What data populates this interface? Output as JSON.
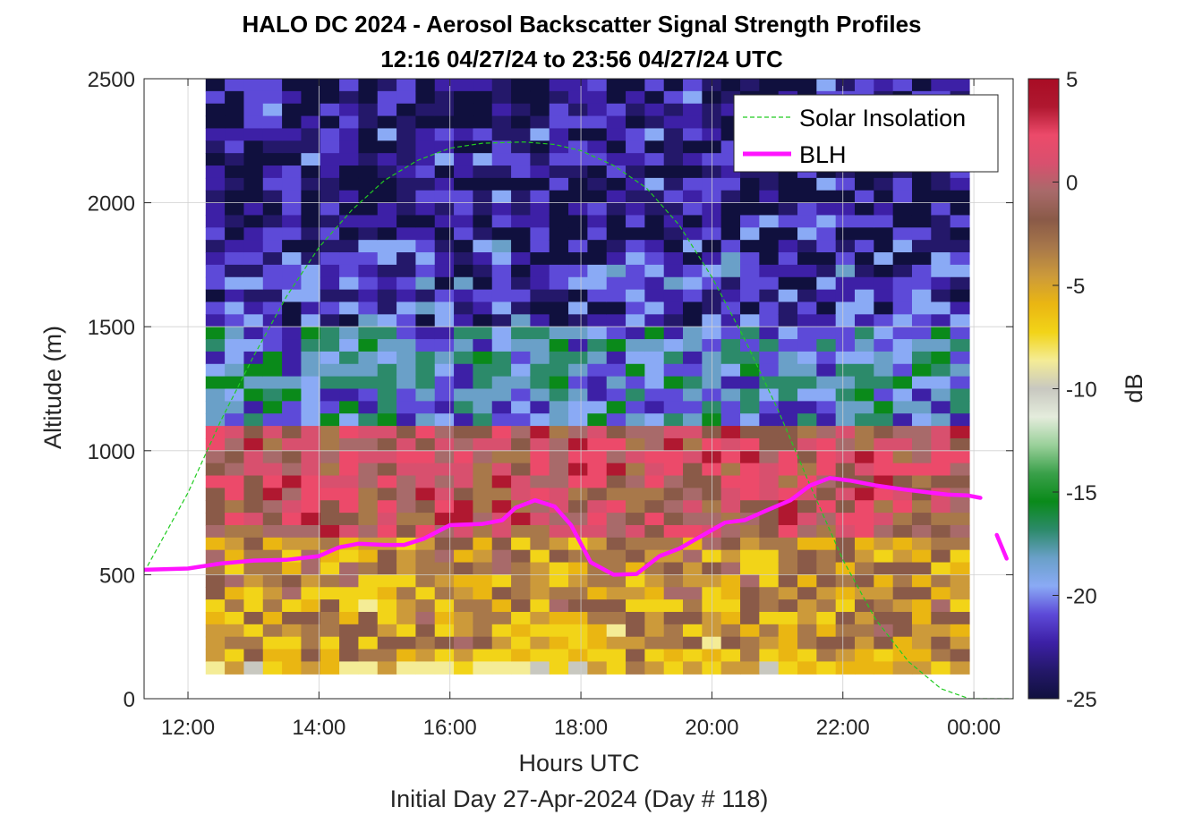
{
  "figure": {
    "title_line1": "HALO DC 2024 - Aerosol Backscatter Signal Strength Profiles",
    "title_line2": "12:16 04/27/24 to 23:56 04/27/24  UTC",
    "xlabel": "Hours UTC",
    "ylabel": "Altitude (m)",
    "footer": "Initial Day 27-Apr-2024 (Day # 118)"
  },
  "colorbar": {
    "label": "dB",
    "ticks": [
      5,
      0,
      -5,
      -10,
      -15,
      -20,
      -25
    ],
    "range": [
      -25,
      5
    ],
    "colors": [
      "#10103e",
      "#24186a",
      "#3d20a6",
      "#5d4ad8",
      "#8aaaf5",
      "#6aa0c8",
      "#2c8a6a",
      "#0a8a1a",
      "#3aa04a",
      "#9ad09a",
      "#e4ecdc",
      "#c8c8c0",
      "#f4ec96",
      "#f2d418",
      "#eab612",
      "#cc9a3a",
      "#a8784a",
      "#8a5a48",
      "#a86a6a",
      "#d8506e",
      "#ec4a6a",
      "#b01830",
      "#a80c24"
    ]
  },
  "chart_data": {
    "type": "heatmap",
    "title": "HALO DC 2024 - Aerosol Backscatter Signal Strength Profiles",
    "subtitle": "12:16 04/27/24 to 23:56 04/27/24  UTC",
    "xlabel": "Hours UTC",
    "ylabel": "Altitude (m)",
    "xlim": [
      11.33,
      24.6
    ],
    "ylim": [
      0,
      2500
    ],
    "x_ticks": [
      12,
      14,
      16,
      18,
      20,
      22,
      24
    ],
    "x_tick_labels": [
      "12:00",
      "14:00",
      "16:00",
      "18:00",
      "20:00",
      "22:00",
      "00:00"
    ],
    "y_ticks": [
      0,
      500,
      1000,
      1500,
      2000,
      2500
    ],
    "y_tick_labels": [
      "0",
      "500",
      "1000",
      "1500",
      "2000",
      "2500"
    ],
    "colorbar_label": "dB",
    "colorbar_range": [
      -25,
      5
    ],
    "grid": true,
    "legend_placement": "top-right",
    "heatmap": {
      "x_start": 12.27,
      "x_end": 23.93,
      "y_start": 100,
      "y_end": 2500,
      "rows_y_top_to_bottom": "2500 to 100",
      "row_groups": [
        {
          "from": 2500,
          "to": 1850,
          "dB": -23.5
        },
        {
          "from": 1850,
          "to": 1500,
          "dB": -22
        },
        {
          "from": 1500,
          "to": 1100,
          "dB": -19
        },
        {
          "from": 1100,
          "to": 650,
          "dB": 0
        },
        {
          "from": 650,
          "to": 400,
          "dB": -4
        },
        {
          "from": 400,
          "to": 150,
          "dB": -4.5
        },
        {
          "from": 150,
          "to": 100,
          "dB": -7
        }
      ]
    },
    "series": [
      {
        "name": "Solar Insolation",
        "style": "dashed",
        "color": "#22cc22",
        "peak": {
          "x": 17.13,
          "y": 2245
        },
        "points": [
          [
            11.33,
            510
          ],
          [
            12.0,
            830
          ],
          [
            12.5,
            1120
          ],
          [
            13.0,
            1380
          ],
          [
            13.5,
            1620
          ],
          [
            14.0,
            1820
          ],
          [
            14.5,
            1970
          ],
          [
            15.0,
            2090
          ],
          [
            15.5,
            2170
          ],
          [
            16.0,
            2220
          ],
          [
            16.5,
            2240
          ],
          [
            17.13,
            2245
          ],
          [
            17.6,
            2235
          ],
          [
            18.0,
            2210
          ],
          [
            18.5,
            2150
          ],
          [
            19.0,
            2060
          ],
          [
            19.5,
            1910
          ],
          [
            20.0,
            1700
          ],
          [
            20.5,
            1450
          ],
          [
            21.0,
            1170
          ],
          [
            21.5,
            860
          ],
          [
            22.0,
            560
          ],
          [
            22.5,
            320
          ],
          [
            23.0,
            150
          ],
          [
            23.5,
            40
          ],
          [
            23.93,
            0
          ],
          [
            24.6,
            0
          ]
        ]
      },
      {
        "name": "BLH",
        "style": "solid",
        "color": "#ff14ff",
        "points": [
          [
            11.33,
            520
          ],
          [
            12.0,
            525
          ],
          [
            12.5,
            545
          ],
          [
            13.0,
            557
          ],
          [
            13.5,
            560
          ],
          [
            14.0,
            575
          ],
          [
            14.3,
            610
          ],
          [
            14.6,
            625
          ],
          [
            15.0,
            620
          ],
          [
            15.3,
            620
          ],
          [
            15.6,
            645
          ],
          [
            16.0,
            700
          ],
          [
            16.5,
            705
          ],
          [
            16.8,
            720
          ],
          [
            17.0,
            770
          ],
          [
            17.3,
            800
          ],
          [
            17.6,
            775
          ],
          [
            17.85,
            700
          ],
          [
            18.15,
            550
          ],
          [
            18.5,
            500
          ],
          [
            18.85,
            503
          ],
          [
            19.2,
            575
          ],
          [
            19.5,
            605
          ],
          [
            19.8,
            650
          ],
          [
            20.2,
            710
          ],
          [
            20.5,
            720
          ],
          [
            20.8,
            755
          ],
          [
            21.2,
            800
          ],
          [
            21.5,
            860
          ],
          [
            21.8,
            890
          ],
          [
            22.1,
            880
          ],
          [
            22.5,
            860
          ],
          [
            22.9,
            845
          ],
          [
            23.3,
            832
          ],
          [
            23.6,
            823
          ],
          [
            23.9,
            820
          ],
          [
            24.1,
            810
          ]
        ],
        "extra_segment": [
          [
            24.35,
            660
          ],
          [
            24.5,
            565
          ]
        ]
      }
    ]
  }
}
